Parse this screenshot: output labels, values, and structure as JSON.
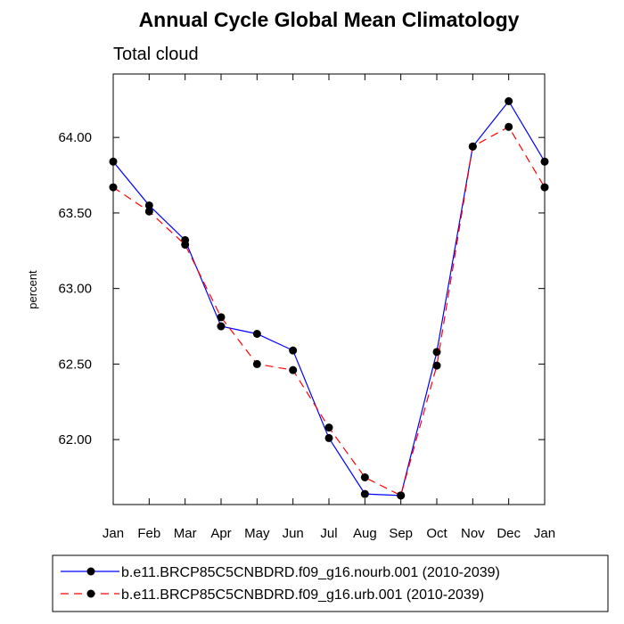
{
  "chart_data": {
    "type": "line",
    "title": "Annual Cycle Global Mean Climatology",
    "subtitle": "Total cloud",
    "xlabel": "",
    "ylabel": "percent",
    "categories": [
      "Jan",
      "Feb",
      "Mar",
      "Apr",
      "May",
      "Jun",
      "Jul",
      "Aug",
      "Sep",
      "Oct",
      "Nov",
      "Dec",
      "Jan"
    ],
    "yticks": [
      62.0,
      62.5,
      63.0,
      63.5,
      64.0
    ],
    "ytick_labels": [
      "62.00",
      "62.50",
      "63.00",
      "63.50",
      "64.00"
    ],
    "ylim": [
      61.57,
      64.42
    ],
    "grid": false,
    "legend_position": "bottom",
    "series": [
      {
        "name": "b.e11.BRCP85C5CNBDRD.f09_g16.nourb.001 (2010-2039)",
        "color": "#0000ff",
        "dash": "solid",
        "values": [
          63.84,
          63.55,
          63.32,
          62.75,
          62.7,
          62.59,
          62.01,
          61.64,
          61.63,
          62.58,
          63.94,
          64.24,
          63.84
        ]
      },
      {
        "name": "b.e11.BRCP85C5CNBDRD.f09_g16.urb.001 (2010-2039)",
        "color": "#ff0000",
        "dash": "dashed",
        "values": [
          63.67,
          63.51,
          63.29,
          62.81,
          62.5,
          62.46,
          62.08,
          61.75,
          61.63,
          62.49,
          63.94,
          64.07,
          63.67
        ]
      }
    ]
  }
}
